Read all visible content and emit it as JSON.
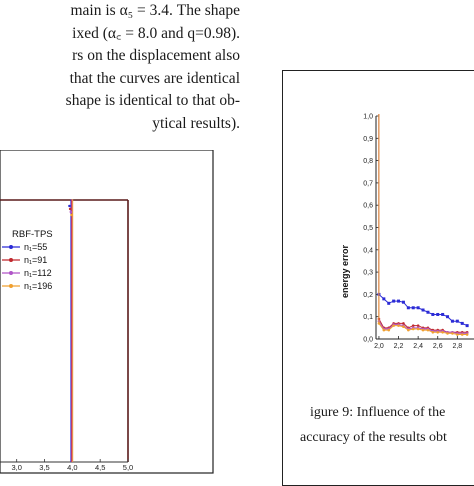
{
  "body_text": {
    "lines": [
      "main is α₅ = 3.4. The shape",
      "ixed (α꜀ = 8.0 and q=0.98).",
      "rs on the displacement also",
      "that the curves are identical",
      "shape is identical to that ob-",
      "ytical results)."
    ]
  },
  "figure_left": {
    "legend_title": "RBF-TPS",
    "legend_items": [
      "n₁=55",
      "n₁=91",
      "n₁=112",
      "n₁=196"
    ],
    "colors": [
      "#2b2bd6",
      "#c0282e",
      "#b055c8",
      "#f0a030"
    ]
  },
  "figure_right": {
    "ylabel": "energy error",
    "caption_lines": [
      "igure 9: Influence of the",
      "accuracy of the results obt"
    ]
  },
  "chart_data": [
    {
      "type": "line",
      "title": "",
      "xlabel": "",
      "ylabel": "",
      "x_tick_labels": [
        "3,0",
        "3,5",
        "4,0",
        "4,5",
        "5,0"
      ],
      "xlim": [
        2.7,
        5.0
      ],
      "legend_title": "RBF-TPS",
      "legend_placement": "top-left",
      "series": [
        {
          "name": "n₁=55",
          "x": [
            3.99,
            3.99,
            4.0
          ],
          "y": [
            0,
            1,
            1
          ]
        },
        {
          "name": "n₁=91",
          "x": [
            3.99,
            3.99,
            4.0
          ],
          "y": [
            0,
            1,
            1
          ]
        },
        {
          "name": "n₁=112",
          "x": [
            3.99,
            3.99,
            4.0
          ],
          "y": [
            0,
            1,
            1
          ]
        },
        {
          "name": "n₁=196",
          "x": [
            3.99,
            3.99,
            4.0
          ],
          "y": [
            0,
            1,
            1
          ]
        }
      ]
    },
    {
      "type": "line",
      "title": "",
      "xlabel": "",
      "ylabel": "energy error",
      "y_tick_labels": [
        "0,0",
        "0,1",
        "0,2",
        "0,3",
        "0,4",
        "0,5",
        "0,6",
        "0,7",
        "0,8",
        "0,9",
        "1,0"
      ],
      "x_tick_labels": [
        "2,0",
        "2,2",
        "2,4",
        "2,6",
        "2,8"
      ],
      "ylim": [
        0,
        1.0
      ],
      "xlim": [
        1.97,
        2.97
      ],
      "series": [
        {
          "x": [
            2.0,
            2.05,
            2.1,
            2.15,
            2.2,
            2.25,
            2.3,
            2.35,
            2.4,
            2.45,
            2.5,
            2.55,
            2.6,
            2.65,
            2.7,
            2.75,
            2.8,
            2.85,
            2.9
          ],
          "y": [
            0.2,
            0.18,
            0.16,
            0.17,
            0.17,
            0.165,
            0.14,
            0.14,
            0.14,
            0.13,
            0.12,
            0.11,
            0.11,
            0.11,
            0.1,
            0.08,
            0.08,
            0.07,
            0.06
          ]
        },
        {
          "x": [
            2.0,
            2.05,
            2.1,
            2.15,
            2.2,
            2.25,
            2.3,
            2.35,
            2.4,
            2.45,
            2.5,
            2.55,
            2.6,
            2.65,
            2.7,
            2.75,
            2.8,
            2.85,
            2.9
          ],
          "y": [
            0.09,
            0.05,
            0.05,
            0.07,
            0.07,
            0.07,
            0.05,
            0.06,
            0.06,
            0.05,
            0.05,
            0.04,
            0.04,
            0.04,
            0.03,
            0.03,
            0.03,
            0.03,
            0.03
          ]
        },
        {
          "x": [
            2.0,
            2.05,
            2.1,
            2.15,
            2.2,
            2.25,
            2.3,
            2.35,
            2.4,
            2.45,
            2.5,
            2.55,
            2.6,
            2.65,
            2.7,
            2.75,
            2.8,
            2.85,
            2.9
          ],
          "y": [
            0.08,
            0.045,
            0.045,
            0.065,
            0.065,
            0.06,
            0.045,
            0.05,
            0.05,
            0.045,
            0.045,
            0.035,
            0.035,
            0.035,
            0.03,
            0.03,
            0.025,
            0.025,
            0.025
          ]
        },
        {
          "x": [
            2.0,
            2.05,
            2.1,
            2.15,
            2.2,
            2.25,
            2.3,
            2.35,
            2.4,
            2.45,
            2.5,
            2.55,
            2.6,
            2.65,
            2.7,
            2.75,
            2.8,
            2.85,
            2.9
          ],
          "y": [
            0.07,
            0.04,
            0.04,
            0.06,
            0.06,
            0.055,
            0.04,
            0.045,
            0.045,
            0.04,
            0.04,
            0.03,
            0.03,
            0.03,
            0.025,
            0.025,
            0.02,
            0.02,
            0.02
          ]
        }
      ]
    }
  ]
}
